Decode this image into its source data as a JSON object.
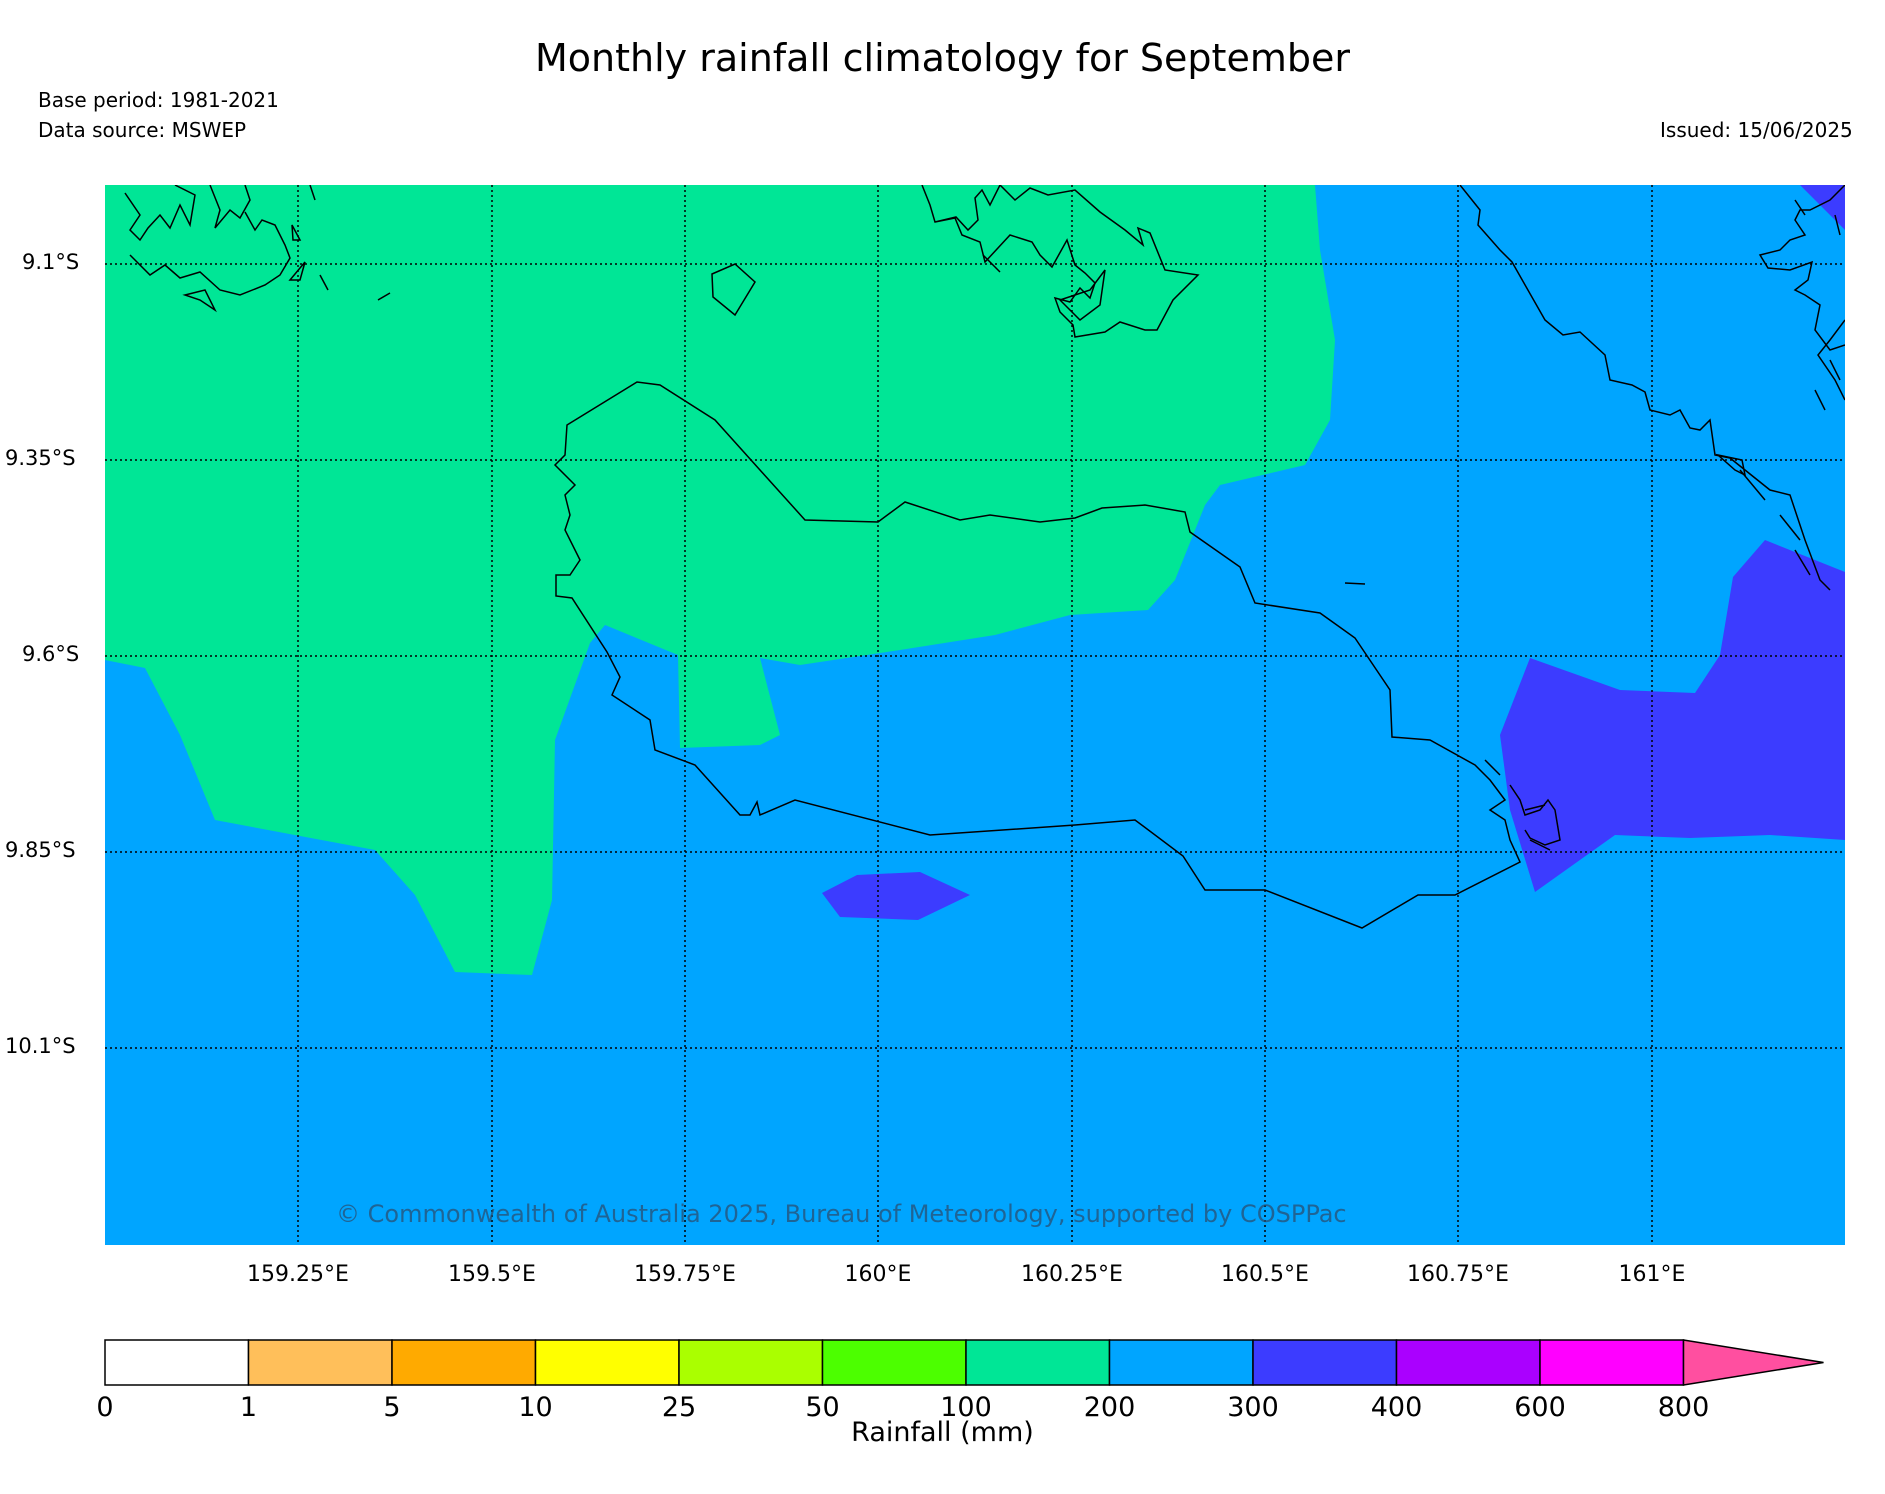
{
  "title": "Monthly rainfall climatology for September",
  "base_period": "Base period: 1981-2021",
  "data_source": "Data source: MSWEP",
  "issued": "Issued: 15/06/2025",
  "copyright": "© Commonwealth of Australia 2025, Bureau of Meteorology, supported by COSPPac",
  "map": {
    "lon_range": [
      159.0,
      161.25
    ],
    "lat_range": [
      -10.35,
      -9.0
    ],
    "lat_ticks": [
      "9.1°S",
      "9.35°S",
      "9.6°S",
      "9.85°S",
      "10.1°S"
    ],
    "lon_ticks": [
      "159.25°E",
      "159.5°E",
      "159.75°E",
      "160°E",
      "160.25°E",
      "160.5°E",
      "160.75°E",
      "161°E"
    ],
    "grid": true
  },
  "legend": {
    "label": "Rainfall (mm)",
    "ticks": [
      "0",
      "1",
      "5",
      "10",
      "25",
      "50",
      "100",
      "200",
      "300",
      "400",
      "600",
      "800"
    ],
    "colors": [
      "#ffffff",
      "#ffbf5a",
      "#ffaa00",
      "#ffff00",
      "#aaff00",
      "#4cff00",
      "#00e696",
      "#00a5ff",
      "#3c3cff",
      "#aa00ff",
      "#ff00ff",
      "#ff4fa0"
    ]
  }
}
